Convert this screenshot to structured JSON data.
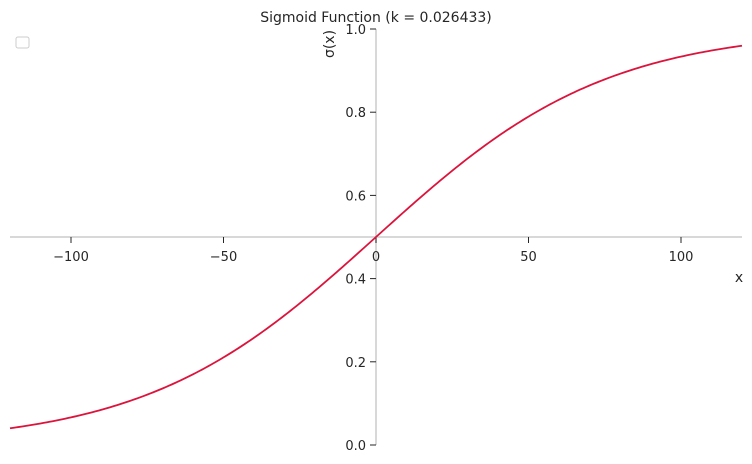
{
  "chart_data": {
    "type": "line",
    "title": "Sigmoid Function (k = 0.026433)",
    "xlabel": "x",
    "ylabel": "σ(x)",
    "xlim": [
      -120,
      120
    ],
    "ylim": [
      0,
      1
    ],
    "x_ticks": [
      -100,
      -50,
      0,
      50,
      100
    ],
    "x_tick_labels": [
      "−100",
      "−50",
      "0",
      "50",
      "100"
    ],
    "y_ticks": [
      0.0,
      0.2,
      0.4,
      0.6,
      0.8,
      1.0
    ],
    "y_tick_labels": [
      "0.0",
      "0.2",
      "0.4",
      "0.6",
      "0.8",
      "1.0"
    ],
    "x_axis_crosses_y_at": 0.5,
    "grid": false,
    "legend": {
      "placement": "top-left",
      "entries": []
    },
    "series": [
      {
        "function": "sigmoid",
        "k": 0.026433,
        "color": "#dc143c",
        "x": [
          -120,
          -100,
          -80,
          -60,
          -40,
          -20,
          0,
          20,
          40,
          60,
          80,
          100,
          120
        ],
        "y": [
          0.04,
          0.066,
          0.108,
          0.17,
          0.258,
          0.371,
          0.5,
          0.629,
          0.742,
          0.83,
          0.892,
          0.934,
          0.96
        ]
      }
    ]
  },
  "colors": {
    "spine": "#cccccc",
    "curve": "#dc143c",
    "text": "#262626"
  }
}
